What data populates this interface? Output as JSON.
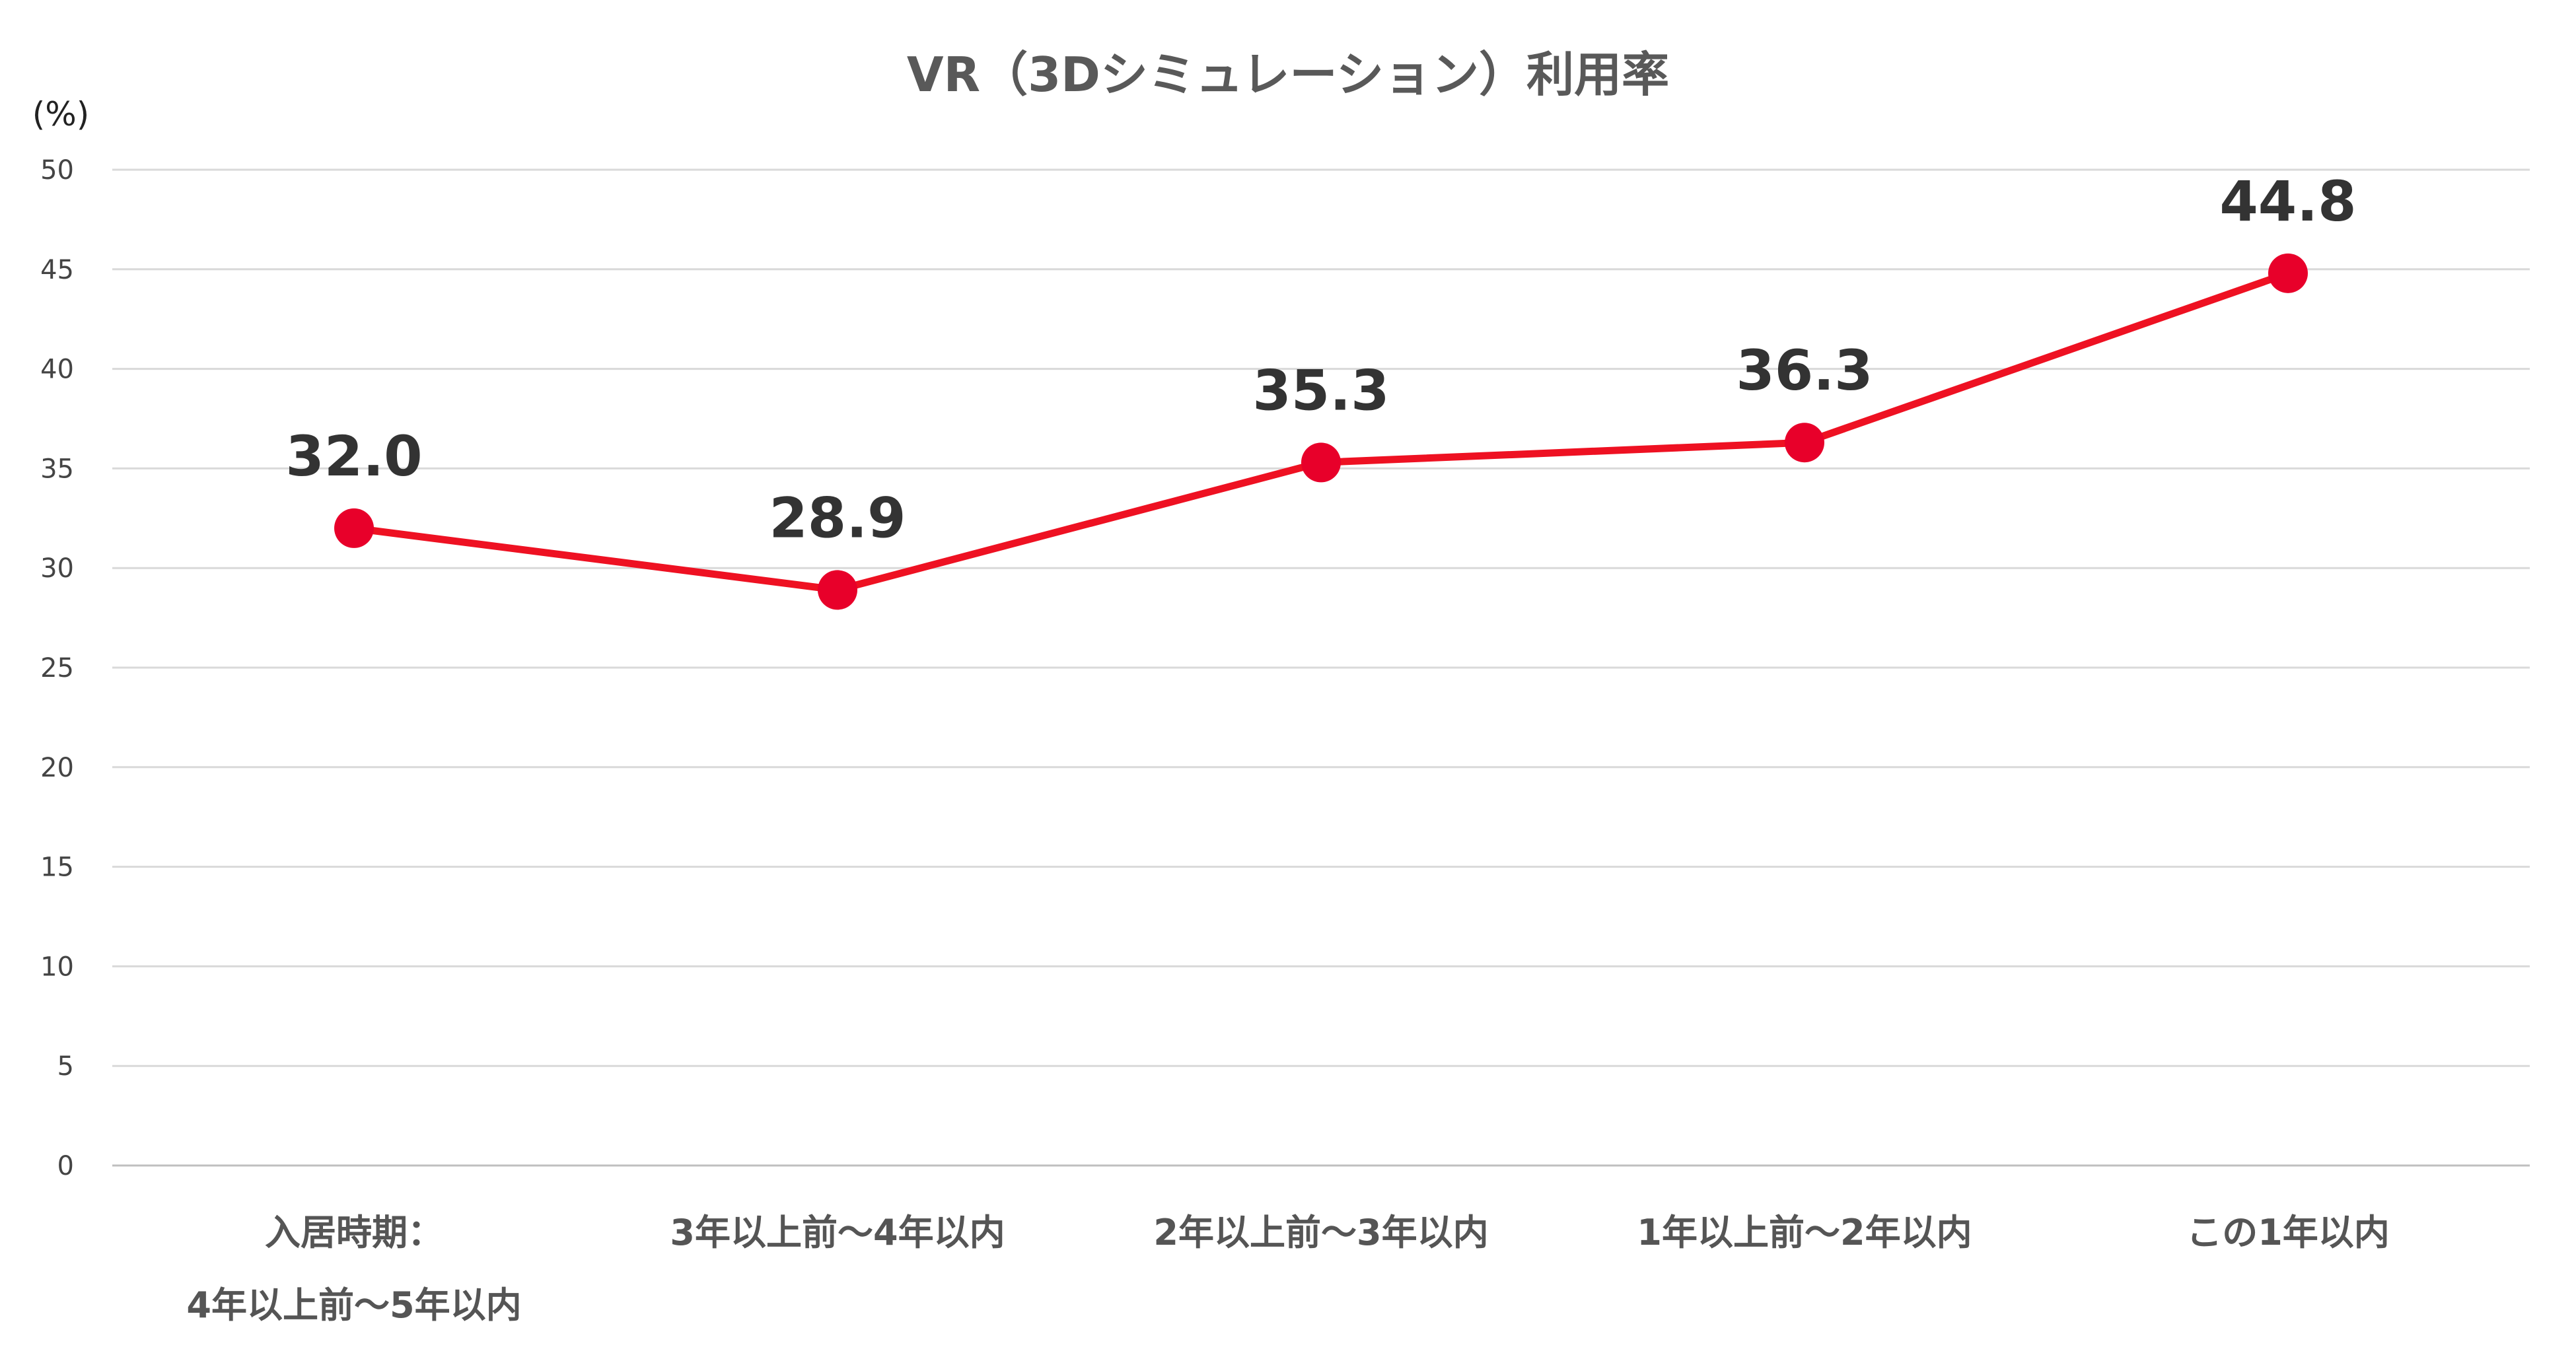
{
  "chart_data": {
    "type": "line",
    "title": "VR（3Dシミュレーション）利用率",
    "ylabel": "(%)",
    "xlabel": "",
    "ylim": [
      0,
      50
    ],
    "yticks": [
      0,
      5,
      10,
      15,
      20,
      25,
      30,
      35,
      40,
      45,
      50
    ],
    "grid": true,
    "legend": "none",
    "categories": [
      [
        "入居時期：",
        "4年以上前～5年以内"
      ],
      [
        "3年以上前～4年以内"
      ],
      [
        "2年以上前～3年以内"
      ],
      [
        "1年以上前～2年以内"
      ],
      [
        "この1年以内"
      ]
    ],
    "series": [
      {
        "name": "VR（3Dシミュレーション）利用率",
        "values": [
          32.0,
          28.9,
          35.3,
          36.3,
          44.8
        ],
        "labels": [
          "32.0",
          "28.9",
          "35.3",
          "36.3",
          "44.8"
        ],
        "color": "#ee1122",
        "marker_color": "#e8002a"
      }
    ],
    "gridline_color": "#d9d9d9"
  }
}
